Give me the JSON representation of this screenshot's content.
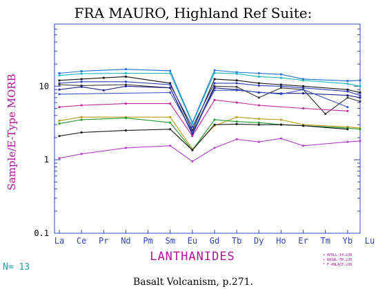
{
  "chart_data": {
    "type": "line",
    "title": "FRA MAURO, Highland Ref Suite:",
    "ylabel": "Sample/E-Type MORB",
    "xlabel": "LANTHANIDES",
    "y_scale": "log",
    "ylim": [
      0.1,
      70
    ],
    "y_ticks": [
      {
        "value": 0.1,
        "label": "0.1"
      },
      {
        "value": 1,
        "label": "1"
      },
      {
        "value": 10,
        "label": "10"
      }
    ],
    "categories": [
      "La",
      "Ce",
      "Pr",
      "Nd",
      "Pm",
      "Sm",
      "Eu",
      "Gd",
      "Tb",
      "Dy",
      "Ho",
      "Er",
      "Tm",
      "Yb",
      "Lu"
    ],
    "grid": false,
    "legend_placement": "bottom-right",
    "legend": [
      {
        "marker": "+",
        "label": "APOLL-14.LUB",
        "color": "#b0139e"
      },
      {
        "marker": "×",
        "label": "BASAL-FD.LUB",
        "color": "#b0139e"
      },
      {
        "marker": "*",
        "label": "F-ANLACE.LUB",
        "color": "#b0139e"
      }
    ],
    "series": [
      {
        "color": "#1f6fd0",
        "points": [
          [
            0,
            15
          ],
          [
            1,
            16
          ],
          [
            3,
            17
          ],
          [
            5,
            16.2
          ],
          [
            6,
            3.2
          ],
          [
            7,
            16.5
          ],
          [
            8,
            15.5
          ],
          [
            9,
            15
          ],
          [
            10,
            14.5
          ],
          [
            11,
            12.5
          ],
          [
            13,
            11.8
          ],
          [
            14,
            12
          ]
        ]
      },
      {
        "color": "#17b7c0",
        "points": [
          [
            0,
            14
          ],
          [
            1,
            14.8
          ],
          [
            3,
            15
          ],
          [
            5,
            15
          ],
          [
            6,
            3.1
          ],
          [
            7,
            15.2
          ],
          [
            8,
            14.8
          ],
          [
            9,
            13.5
          ],
          [
            10,
            13
          ],
          [
            11,
            12
          ],
          [
            13,
            10.8
          ],
          [
            14,
            10
          ]
        ]
      },
      {
        "color": "#111111",
        "points": [
          [
            0,
            12
          ],
          [
            1,
            12.5
          ],
          [
            2,
            13
          ],
          [
            3,
            13.5
          ],
          [
            5,
            11
          ],
          [
            6,
            2.5
          ],
          [
            7,
            12.5
          ],
          [
            8,
            12
          ],
          [
            9,
            11
          ],
          [
            10,
            10.5
          ],
          [
            11,
            10
          ],
          [
            13,
            9
          ],
          [
            14,
            8.2
          ]
        ]
      },
      {
        "color": "#2a3bb5",
        "points": [
          [
            0,
            11
          ],
          [
            1,
            11.5
          ],
          [
            3,
            11.5
          ],
          [
            5,
            10.5
          ],
          [
            6,
            2.8
          ],
          [
            7,
            11
          ],
          [
            8,
            11
          ],
          [
            9,
            10.2
          ],
          [
            10,
            10
          ],
          [
            11,
            9.5
          ],
          [
            13,
            8.5
          ],
          [
            14,
            7.5
          ]
        ]
      },
      {
        "color": "#333333",
        "points": [
          [
            0,
            10.5
          ],
          [
            1,
            10.2
          ],
          [
            3,
            10.5
          ],
          [
            5,
            9.5
          ],
          [
            6,
            2.3
          ],
          [
            7,
            10
          ],
          [
            8,
            9.8
          ],
          [
            9,
            7
          ],
          [
            10,
            9.5
          ],
          [
            11,
            9
          ],
          [
            12,
            4.2
          ],
          [
            13,
            7
          ],
          [
            14,
            6.2
          ]
        ]
      },
      {
        "color": "#1f1f8a",
        "points": [
          [
            0,
            9
          ],
          [
            1,
            9.8
          ],
          [
            2,
            8.8
          ],
          [
            3,
            10
          ],
          [
            5,
            9.5
          ],
          [
            6,
            2.2
          ],
          [
            7,
            9.5
          ],
          [
            8,
            9
          ],
          [
            9,
            8.2
          ],
          [
            10,
            8
          ],
          [
            11,
            8
          ],
          [
            13,
            7.5
          ],
          [
            14,
            7
          ]
        ]
      },
      {
        "color": "#3a52c8",
        "points": [
          [
            0,
            7.8
          ],
          [
            5,
            8.2
          ],
          [
            6,
            2.4
          ],
          [
            7,
            8.8
          ],
          [
            8,
            8.8
          ],
          [
            10,
            7.8
          ],
          [
            11,
            9
          ],
          [
            13,
            5.2
          ]
        ]
      },
      {
        "color": "#c0249e",
        "points": [
          [
            0,
            5.2
          ],
          [
            1,
            5.5
          ],
          [
            3,
            5.8
          ],
          [
            5,
            5.8
          ],
          [
            6,
            2.1
          ],
          [
            7,
            6.5
          ],
          [
            8,
            6
          ],
          [
            9,
            5.5
          ],
          [
            11,
            5
          ],
          [
            13,
            4.6
          ]
        ]
      },
      {
        "color": "#b89a18",
        "points": [
          [
            0,
            3.4
          ],
          [
            1,
            3.8
          ],
          [
            3,
            3.8
          ],
          [
            5,
            3.8
          ],
          [
            6,
            1.4
          ],
          [
            7,
            2.9
          ],
          [
            8,
            3.8
          ],
          [
            9,
            3.6
          ],
          [
            10,
            3.5
          ],
          [
            11,
            3
          ],
          [
            13,
            2.8
          ],
          [
            14,
            2.7
          ]
        ]
      },
      {
        "color": "#1f9a2a",
        "points": [
          [
            0,
            3.1
          ],
          [
            1,
            3.5
          ],
          [
            3,
            3.7
          ],
          [
            5,
            3.2
          ],
          [
            6,
            1.35
          ],
          [
            7,
            3.5
          ],
          [
            8,
            3.3
          ],
          [
            9,
            3.2
          ],
          [
            10,
            3
          ],
          [
            11,
            2.9
          ],
          [
            13,
            2.7
          ],
          [
            14,
            2.6
          ]
        ]
      },
      {
        "color": "#1a1a1a",
        "points": [
          [
            0,
            2.1
          ],
          [
            1,
            2.35
          ],
          [
            3,
            2.5
          ],
          [
            5,
            2.6
          ],
          [
            6,
            1.35
          ],
          [
            7,
            3
          ],
          [
            8,
            3.05
          ],
          [
            9,
            3
          ],
          [
            10,
            3
          ],
          [
            11,
            2.9
          ],
          [
            13,
            2.6
          ]
        ]
      },
      {
        "color": "#b040c8",
        "points": [
          [
            0,
            1.05
          ],
          [
            1,
            1.2
          ],
          [
            3,
            1.45
          ],
          [
            5,
            1.55
          ],
          [
            6,
            0.95
          ],
          [
            7,
            1.45
          ],
          [
            8,
            1.9
          ],
          [
            9,
            1.75
          ],
          [
            10,
            1.95
          ],
          [
            11,
            1.55
          ],
          [
            13,
            1.75
          ],
          [
            14,
            1.8
          ]
        ]
      }
    ]
  },
  "footer": {
    "count_label": "N= 13",
    "source": "Basalt Volcanism, p.271."
  }
}
